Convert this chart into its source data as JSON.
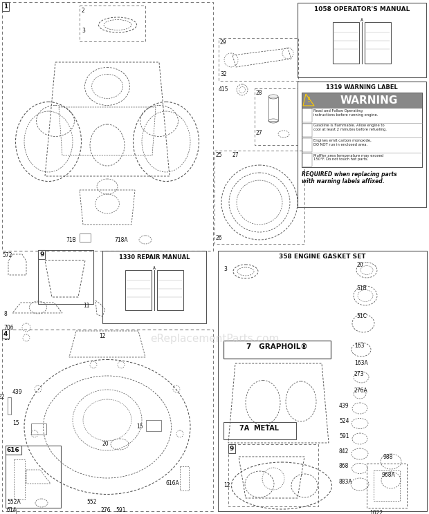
{
  "bg_color": "#ffffff",
  "watermark": "eReplacementParts.com",
  "operators_manual_title": "1058 OPERATOR'S MANUAL",
  "repair_manual_title": "1330 REPAIR MANUAL",
  "warning_title": "1319 WARNING LABEL",
  "warning_lines": [
    "Read and Follow Operating\ninstructions before running engine.",
    "Gasoline is flammable. Allow engine to\ncool at least 2 minutes before refueling.",
    "Engines emit carbon monoxide,\nDO NOT run in enclosed area.",
    "Muffler area temperature may exceed\n150°F. Do not touch hot parts."
  ],
  "warning_footer": "REQUIRED when replacing parts\nwith warning labels affixed.",
  "graphoil_label": "7   GRAPHOIL®",
  "metal_label": "7A  METAL",
  "gasket_title": "358 ENGINE GASKET SET"
}
